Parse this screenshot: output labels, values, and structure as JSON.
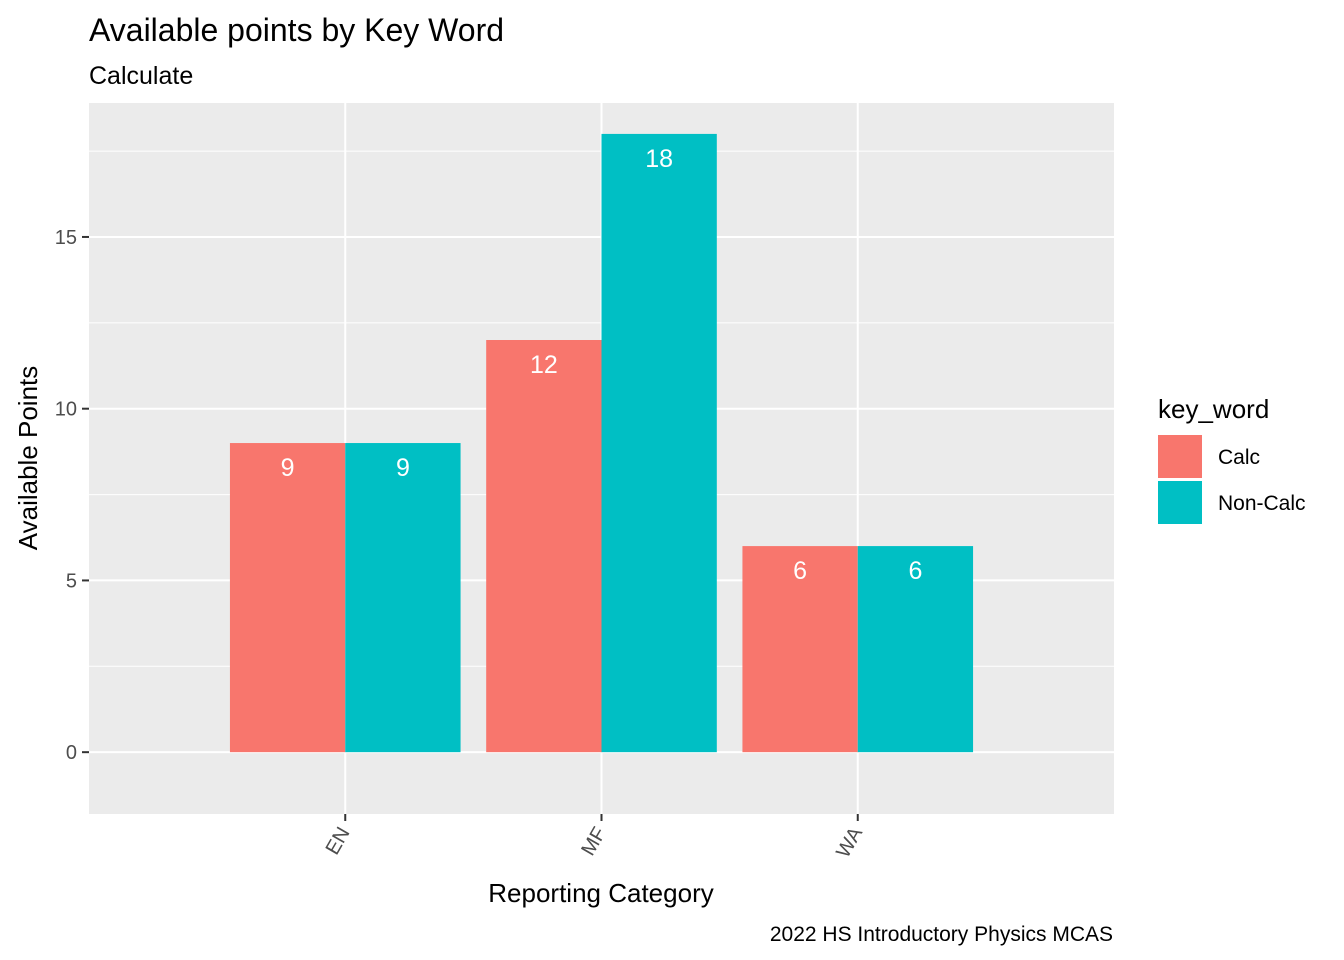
{
  "chart_data": {
    "type": "bar",
    "title": "Available points by Key Word",
    "subtitle": "Calculate",
    "xlabel": "Reporting Category",
    "ylabel": "Available Points",
    "caption": "2022 HS Introductory Physics MCAS",
    "categories": [
      "EN",
      "MF",
      "WA"
    ],
    "series": [
      {
        "name": "Calc",
        "values": [
          9,
          12,
          6
        ],
        "color": "#F8766D"
      },
      {
        "name": "Non-Calc",
        "values": [
          9,
          18,
          6
        ],
        "color": "#00BFC4"
      }
    ],
    "ylim": [
      -1.8,
      18.9
    ],
    "yticks": [
      0,
      5,
      10,
      15
    ],
    "grid": true,
    "legend": {
      "title": "key_word",
      "position": "right"
    },
    "panel_color": "#EBEBEB"
  }
}
